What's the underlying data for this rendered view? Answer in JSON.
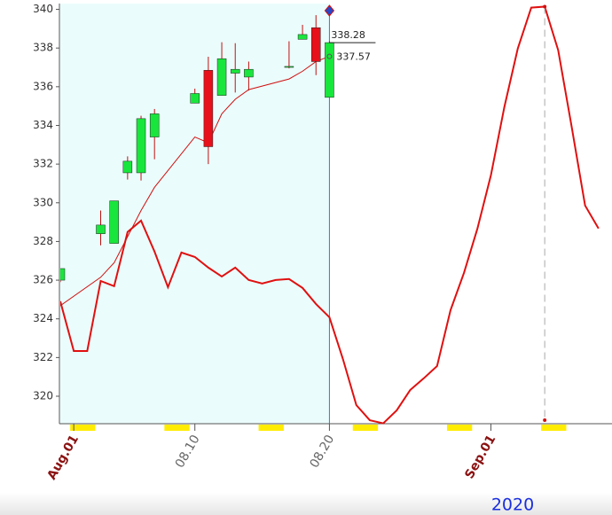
{
  "chart_data": {
    "type": "candlestick",
    "x": [
      "2020-07-31",
      "2020-08-03",
      "2020-08-04",
      "2020-08-05",
      "2020-08-06",
      "2020-08-07",
      "2020-08-10",
      "2020-08-11",
      "2020-08-12",
      "2020-08-13",
      "2020-08-14",
      "2020-08-17",
      "2020-08-18",
      "2020-08-19",
      "2020-08-20"
    ],
    "open": [
      326.0,
      328.4,
      327.9,
      331.55,
      331.55,
      333.4,
      335.15,
      336.85,
      335.55,
      336.7,
      336.5,
      337.0,
      338.45,
      339.05,
      335.45
    ],
    "high": [
      326.6,
      329.6,
      330.1,
      332.4,
      334.5,
      334.85,
      335.9,
      337.55,
      338.3,
      338.25,
      337.3,
      338.35,
      339.2,
      339.7,
      338.35
    ],
    "low": [
      325.9,
      327.8,
      327.9,
      331.2,
      331.15,
      332.25,
      335.15,
      332.0,
      335.55,
      335.7,
      335.8,
      336.95,
      338.45,
      336.6,
      335.45
    ],
    "close": [
      326.6,
      328.85,
      330.1,
      332.15,
      334.35,
      334.6,
      335.65,
      332.9,
      337.45,
      336.9,
      336.9,
      337.05,
      338.7,
      337.3,
      338.28
    ],
    "up_color": "#19e63c",
    "down_color": "#e8101a",
    "moving_average": {
      "color": "#d01010",
      "values": [
        324.68,
        326.15,
        326.9,
        328.25,
        329.6,
        330.8,
        333.4,
        333.1,
        334.6,
        335.35,
        335.85,
        336.4,
        336.8,
        337.3,
        337.57
      ]
    },
    "forecast": {
      "color": "#e01010",
      "x": [
        "2020-07-31",
        "2020-08-01",
        "2020-08-02",
        "2020-08-03",
        "2020-08-04",
        "2020-08-05",
        "2020-08-06",
        "2020-08-07",
        "2020-08-08",
        "2020-08-09",
        "2020-08-10",
        "2020-08-11",
        "2020-08-12",
        "2020-08-13",
        "2020-08-14",
        "2020-08-15",
        "2020-08-16",
        "2020-08-17",
        "2020-08-18",
        "2020-08-19",
        "2020-08-20",
        "2020-08-21",
        "2020-08-22",
        "2020-08-23",
        "2020-08-24",
        "2020-08-25",
        "2020-08-26",
        "2020-08-27",
        "2020-08-28",
        "2020-08-29",
        "2020-08-30",
        "2020-08-31",
        "2020-09-01",
        "2020-09-02",
        "2020-09-03",
        "2020-09-04",
        "2020-09-05",
        "2020-09-06",
        "2020-09-07",
        "2020-09-08",
        "2020-09-09"
      ],
      "values": [
        324.91,
        322.34,
        322.34,
        325.96,
        325.69,
        328.49,
        329.08,
        327.48,
        325.64,
        327.43,
        327.2,
        326.65,
        326.19,
        326.65,
        326.01,
        325.83,
        326.01,
        326.06,
        325.6,
        324.77,
        324.08,
        321.93,
        319.54,
        318.76,
        318.6,
        319.27,
        320.32,
        320.92,
        321.56,
        324.45,
        326.38,
        328.67,
        331.42,
        334.95,
        337.98,
        340.09,
        340.14,
        337.89,
        333.94,
        329.86,
        328.67
      ]
    },
    "xlim": [
      "2020-07-31",
      "2020-09-10"
    ],
    "xticks": [
      {
        "value": "2020-08-01",
        "label": "Aug.01"
      },
      {
        "value": "2020-08-10",
        "label": "08.10"
      },
      {
        "value": "2020-08-20",
        "label": "08.20"
      },
      {
        "value": "2020-09-01",
        "label": "Sep.01"
      }
    ],
    "xlabel": "2020",
    "ylim": [
      318.58,
      340.3
    ],
    "yticks": [
      320,
      322,
      324,
      326,
      328,
      330,
      332,
      334,
      336,
      338,
      340
    ]
  }
}
